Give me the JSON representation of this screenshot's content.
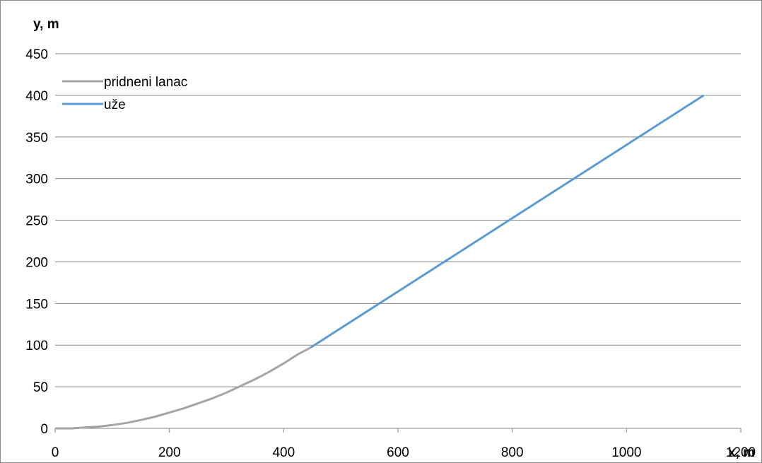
{
  "chart_data": {
    "type": "line",
    "xlabel": "x, m",
    "ylabel": "y, m",
    "xlim": [
      0,
      1200
    ],
    "ylim": [
      0,
      450
    ],
    "x_ticks": [
      "0",
      "200",
      "400",
      "600",
      "800",
      "1000",
      "1200"
    ],
    "y_ticks": [
      "0",
      "50",
      "100",
      "150",
      "200",
      "250",
      "300",
      "350",
      "400",
      "450"
    ],
    "grid": "horizontal",
    "legend_position": "top-left",
    "series": [
      {
        "name": "pridneni lanac",
        "color": "#a5a5a5",
        "points": [
          [
            0,
            0
          ],
          [
            30,
            0
          ],
          [
            50,
            1
          ],
          [
            75,
            2
          ],
          [
            100,
            4
          ],
          [
            125,
            6.5
          ],
          [
            150,
            10
          ],
          [
            175,
            14
          ],
          [
            200,
            19
          ],
          [
            225,
            24
          ],
          [
            250,
            30
          ],
          [
            275,
            36
          ],
          [
            300,
            43
          ],
          [
            325,
            51
          ],
          [
            350,
            59
          ],
          [
            375,
            68
          ],
          [
            400,
            78
          ],
          [
            425,
            89
          ],
          [
            447,
            97
          ]
        ]
      },
      {
        "name": "uže",
        "color": "#5b9bd5",
        "points": [
          [
            447,
            97
          ],
          [
            1135,
            400
          ]
        ]
      }
    ]
  }
}
